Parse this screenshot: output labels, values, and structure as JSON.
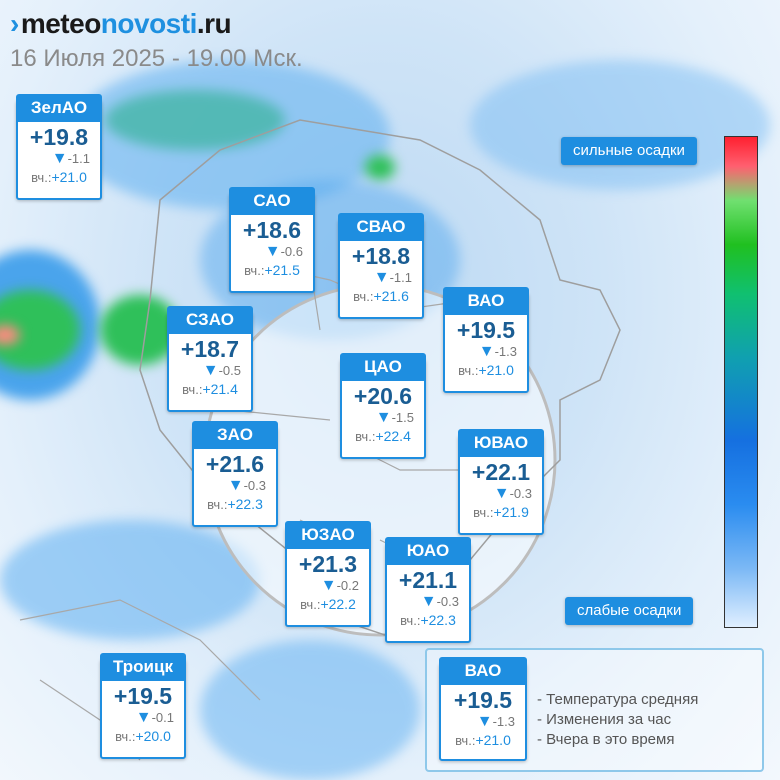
{
  "header": {
    "logo_part1": "meteo",
    "logo_part2": "novosti",
    "logo_part3": ".ru",
    "date": "16 Июля 2025 - 19.00 Мск."
  },
  "scale": {
    "high_label": "сильные осадки",
    "low_label": "слабые осадки"
  },
  "districts": [
    {
      "name": "ЗелАО",
      "temp": "+19.8",
      "delta": "-1.1",
      "yday_label": "вч.:",
      "yday": "+21.0"
    },
    {
      "name": "САО",
      "temp": "+18.6",
      "delta": "-0.6",
      "yday_label": "вч.:",
      "yday": "+21.5"
    },
    {
      "name": "СВАО",
      "temp": "+18.8",
      "delta": "-1.1",
      "yday_label": "вч.:",
      "yday": "+21.6"
    },
    {
      "name": "ВАО",
      "temp": "+19.5",
      "delta": "-1.3",
      "yday_label": "вч.:",
      "yday": "+21.0"
    },
    {
      "name": "СЗАО",
      "temp": "+18.7",
      "delta": "-0.5",
      "yday_label": "вч.:",
      "yday": "+21.4"
    },
    {
      "name": "ЦАО",
      "temp": "+20.6",
      "delta": "-1.5",
      "yday_label": "вч.:",
      "yday": "+22.4"
    },
    {
      "name": "ЗАО",
      "temp": "+21.6",
      "delta": "-0.3",
      "yday_label": "вч.:",
      "yday": "+22.3"
    },
    {
      "name": "ЮВАО",
      "temp": "+22.1",
      "delta": "-0.3",
      "yday_label": "вч.:",
      "yday": "+21.9"
    },
    {
      "name": "ЮЗАО",
      "temp": "+21.3",
      "delta": "-0.2",
      "yday_label": "вч.:",
      "yday": "+22.2"
    },
    {
      "name": "ЮАО",
      "temp": "+21.1",
      "delta": "-0.3",
      "yday_label": "вч.:",
      "yday": "+22.3"
    },
    {
      "name": "Троицк",
      "temp": "+19.5",
      "delta": "-0.1",
      "yday_label": "вч.:",
      "yday": "+20.0"
    }
  ],
  "legend": {
    "sample": {
      "name": "ВАО",
      "temp": "+19.5",
      "delta": "-1.3",
      "yday_label": "вч.:",
      "yday": "+21.0"
    },
    "line1": "- Температура средняя",
    "line2": "- Изменения за час",
    "line3": "- Вчера в это время"
  },
  "icons": {
    "delta_marker": "down-triangle-icon"
  },
  "colors": {
    "accent": "#1e8ee0",
    "temp_text": "#1a5d93"
  }
}
